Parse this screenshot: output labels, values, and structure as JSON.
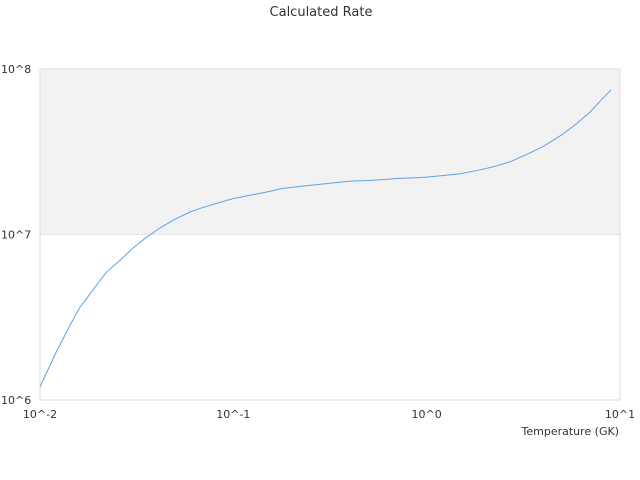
{
  "chart_data": {
    "type": "line",
    "title": "Calculated Rate",
    "xlabel": "Temperature (GK)",
    "ylabel": "",
    "x_scale": "log",
    "y_scale": "log",
    "xlim": [
      0.01,
      10
    ],
    "ylim": [
      1000000,
      100000000
    ],
    "x_ticks": [
      {
        "value": 0.01,
        "label": "10^-2"
      },
      {
        "value": 0.1,
        "label": "10^-1"
      },
      {
        "value": 1,
        "label": "10^0"
      },
      {
        "value": 10,
        "label": "10^1"
      }
    ],
    "y_ticks": [
      {
        "value": 1000000,
        "label": "10^6"
      },
      {
        "value": 10000000,
        "label": "10^7"
      },
      {
        "value": 100000000,
        "label": "10^8"
      }
    ],
    "band": {
      "y_from": 10000000,
      "y_to": 100000000,
      "color": "#f2f2f2"
    },
    "grid": false,
    "series": [
      {
        "color": "#5ea2e8",
        "x": [
          0.01,
          0.012,
          0.014,
          0.016,
          0.019,
          0.022,
          0.026,
          0.03,
          0.035,
          0.042,
          0.05,
          0.06,
          0.07,
          0.085,
          0.1,
          0.12,
          0.15,
          0.18,
          0.22,
          0.27,
          0.33,
          0.4,
          0.5,
          0.6,
          0.7,
          0.85,
          1.0,
          1.2,
          1.5,
          1.8,
          2.2,
          2.7,
          3.3,
          4.0,
          5.0,
          6.0,
          7.0,
          8.0,
          9.0
        ],
        "values": [
          1200000,
          1900000,
          2700000,
          3600000,
          4700000,
          5900000,
          7000000,
          8200000,
          9500000,
          11000000,
          12400000,
          13700000,
          14600000,
          15600000,
          16500000,
          17200000,
          18100000,
          19000000,
          19500000,
          20000000,
          20500000,
          21000000,
          21200000,
          21500000,
          21800000,
          22000000,
          22200000,
          22700000,
          23300000,
          24300000,
          25600000,
          27500000,
          30500000,
          34000000,
          40000000,
          47000000,
          55000000,
          65000000,
          75000000
        ]
      }
    ]
  }
}
